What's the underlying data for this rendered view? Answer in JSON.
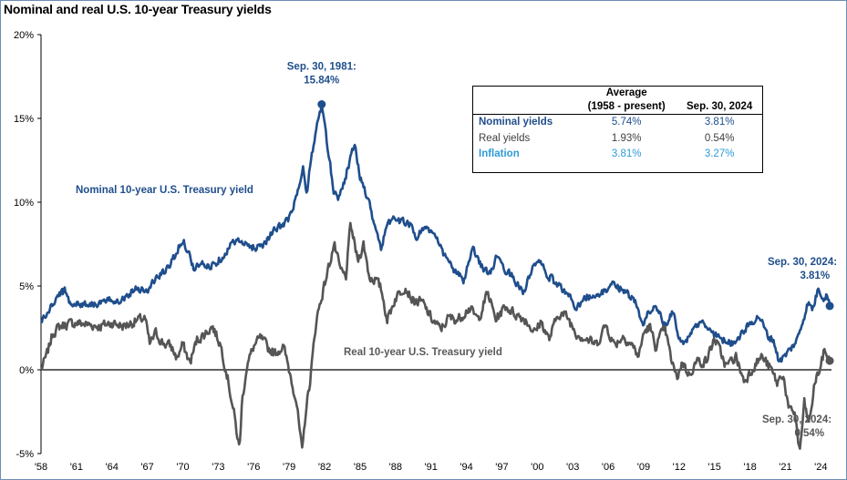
{
  "title": "Nominal and real U.S. 10-year Treasury yields",
  "colors": {
    "nominal": "#1f4e8c",
    "real": "#555555",
    "inflation": "#2e9bd6"
  },
  "chart_data": {
    "type": "line",
    "ylim": [
      -5,
      20
    ],
    "xlim": [
      1958.0,
      2024.9
    ],
    "y_ticks": [
      "20%",
      "15%",
      "10%",
      "5%",
      "0%",
      "-5%"
    ],
    "y_tick_values": [
      20,
      15,
      10,
      5,
      0,
      -5
    ],
    "x_ticks": [
      "'58",
      "'61",
      "'64",
      "'67",
      "'70",
      "'73",
      "'76",
      "'79",
      "'82",
      "'85",
      "'88",
      "'91",
      "'94",
      "'97",
      "'00",
      "'03",
      "'06",
      "'09",
      "'12",
      "'15",
      "'18",
      "'21",
      "'24"
    ],
    "x_tick_values": [
      1958,
      1961,
      1964,
      1967,
      1970,
      1973,
      1976,
      1979,
      1982,
      1985,
      1988,
      1991,
      1994,
      1997,
      2000,
      2003,
      2006,
      2009,
      2012,
      2015,
      2018,
      2021,
      2024
    ],
    "series": [
      {
        "name": "Nominal 10-year U.S. Treasury yield",
        "x": [
          1958.0,
          1958.5,
          1959.0,
          1959.5,
          1960.0,
          1960.5,
          1961.0,
          1962.0,
          1963.0,
          1964.0,
          1965.0,
          1966.0,
          1966.7,
          1967.0,
          1967.5,
          1968.0,
          1968.7,
          1969.3,
          1970.0,
          1970.6,
          1971.0,
          1971.5,
          1972.0,
          1972.8,
          1973.5,
          1974.5,
          1975.0,
          1976.0,
          1976.8,
          1977.5,
          1978.3,
          1979.0,
          1979.7,
          1980.2,
          1980.5,
          1980.9,
          1981.2,
          1981.75,
          1982.2,
          1982.8,
          1983.2,
          1983.8,
          1984.5,
          1985.0,
          1985.6,
          1986.3,
          1986.8,
          1987.3,
          1987.8,
          1988.3,
          1989.0,
          1989.8,
          1990.5,
          1991.3,
          1992.0,
          1993.0,
          1993.8,
          1994.5,
          1995.3,
          1996.0,
          1996.5,
          1997.3,
          1998.0,
          1998.8,
          1999.5,
          2000.0,
          2000.8,
          2001.5,
          2002.5,
          2003.3,
          2004.0,
          2005.0,
          2006.0,
          2006.5,
          2007.5,
          2008.3,
          2008.9,
          2009.4,
          2010.0,
          2010.8,
          2011.5,
          2012.0,
          2012.6,
          2013.5,
          2014.0,
          2015.0,
          2016.0,
          2016.5,
          2017.5,
          2018.2,
          2018.8,
          2019.5,
          2020.0,
          2020.4,
          2020.8,
          2021.5,
          2022.0,
          2022.5,
          2022.9,
          2023.3,
          2023.8,
          2024.2,
          2024.5,
          2024.75
        ],
        "values": [
          2.9,
          3.3,
          3.9,
          4.5,
          4.7,
          4.0,
          3.9,
          3.95,
          3.95,
          4.15,
          4.25,
          4.9,
          4.8,
          4.6,
          5.3,
          5.6,
          6.0,
          6.8,
          7.8,
          6.8,
          5.9,
          6.4,
          6.1,
          6.4,
          6.9,
          7.8,
          7.5,
          7.3,
          7.5,
          8.1,
          8.6,
          9.0,
          10.5,
          12.0,
          10.5,
          12.8,
          14.0,
          15.84,
          13.5,
          10.6,
          10.3,
          11.6,
          13.5,
          11.5,
          10.4,
          8.5,
          7.3,
          8.5,
          9.2,
          8.8,
          8.9,
          7.9,
          8.6,
          8.0,
          7.0,
          5.9,
          5.3,
          7.2,
          6.2,
          5.7,
          6.6,
          6.0,
          5.5,
          4.6,
          5.8,
          6.6,
          5.7,
          5.2,
          4.6,
          3.7,
          4.4,
          4.3,
          4.9,
          5.1,
          4.7,
          4.0,
          2.6,
          3.5,
          3.8,
          2.6,
          3.4,
          1.9,
          1.6,
          2.7,
          2.8,
          2.1,
          1.7,
          1.6,
          2.3,
          2.9,
          3.2,
          2.0,
          1.8,
          0.6,
          0.7,
          1.3,
          1.8,
          3.0,
          4.0,
          3.6,
          4.9,
          4.3,
          4.5,
          3.81
        ]
      },
      {
        "name": "Real 10-year U.S. Treasury yield",
        "x": [
          1958.0,
          1958.5,
          1959.0,
          1959.6,
          1960.0,
          1961.0,
          1962.0,
          1963.0,
          1964.0,
          1965.0,
          1966.0,
          1966.8,
          1967.2,
          1967.7,
          1968.3,
          1969.0,
          1969.5,
          1970.0,
          1970.6,
          1971.2,
          1971.8,
          1972.5,
          1973.2,
          1973.8,
          1974.3,
          1974.8,
          1975.0,
          1975.4,
          1976.0,
          1976.6,
          1977.2,
          1977.8,
          1978.5,
          1979.0,
          1979.6,
          1980.1,
          1980.4,
          1980.8,
          1981.3,
          1981.8,
          1982.3,
          1982.8,
          1983.3,
          1983.8,
          1984.2,
          1984.8,
          1985.3,
          1985.8,
          1986.3,
          1986.8,
          1987.3,
          1988.0,
          1988.8,
          1989.5,
          1990.3,
          1991.0,
          1991.8,
          1992.5,
          1993.3,
          1994.2,
          1995.0,
          1995.8,
          1996.5,
          1997.3,
          1998.0,
          1999.0,
          1999.8,
          2000.3,
          2001.0,
          2001.8,
          2002.5,
          2003.3,
          2004.0,
          2005.0,
          2005.8,
          2006.5,
          2007.3,
          2008.0,
          2008.6,
          2009.0,
          2009.5,
          2010.0,
          2010.8,
          2011.3,
          2011.8,
          2012.3,
          2012.8,
          2013.5,
          2014.3,
          2015.0,
          2016.0,
          2016.8,
          2017.5,
          2018.3,
          2019.0,
          2019.8,
          2020.3,
          2020.8,
          2021.3,
          2021.8,
          2022.2,
          2022.6,
          2023.0,
          2023.5,
          2024.0,
          2024.3,
          2024.75
        ],
        "values": [
          0.0,
          0.9,
          2.2,
          2.6,
          2.7,
          2.8,
          2.7,
          2.6,
          2.8,
          2.6,
          2.9,
          3.1,
          1.5,
          2.2,
          1.6,
          1.4,
          0.7,
          1.5,
          0.4,
          1.8,
          2.1,
          2.6,
          1.5,
          -0.5,
          -2.5,
          -4.8,
          -2.0,
          0.2,
          1.4,
          1.9,
          1.3,
          1.0,
          1.4,
          0.0,
          -1.8,
          -5.0,
          -2.5,
          -0.5,
          3.0,
          4.5,
          6.0,
          7.5,
          6.0,
          5.5,
          8.7,
          6.5,
          7.5,
          5.5,
          5.4,
          4.8,
          3.0,
          4.3,
          5.0,
          4.1,
          4.0,
          3.1,
          2.4,
          3.1,
          3.0,
          3.7,
          3.0,
          4.6,
          3.0,
          3.8,
          3.4,
          3.0,
          2.2,
          2.9,
          1.8,
          3.4,
          3.2,
          2.2,
          1.9,
          1.5,
          2.7,
          1.5,
          2.0,
          1.5,
          0.8,
          2.2,
          2.6,
          1.4,
          2.5,
          0.7,
          -0.5,
          0.5,
          -0.3,
          0.5,
          0.5,
          1.9,
          0.2,
          0.8,
          -0.7,
          0.2,
          0.8,
          0.0,
          -0.8,
          -0.2,
          -2.5,
          -2.5,
          -5.0,
          -2.0,
          -3.3,
          -0.7,
          0.2,
          1.2,
          0.54
        ]
      }
    ],
    "annotations": [
      {
        "lines": [
          "Sep. 30, 1981:",
          "15.84%"
        ],
        "x": 1981.75,
        "y": 15.84,
        "series": "nominal"
      },
      {
        "lines": [
          "Sep. 30, 2024:",
          "3.81%"
        ],
        "x": 2024.75,
        "y": 3.81,
        "series": "nominal"
      },
      {
        "lines": [
          "Sep. 30, 2024:",
          "0.54%"
        ],
        "x": 2024.75,
        "y": 0.54,
        "series": "real"
      }
    ],
    "series_labels": {
      "nominal": "Nominal  10-year U.S.  Treasury yield",
      "real": "Real 10-year U.S.  Treasury yield"
    }
  },
  "stats_table": {
    "header": {
      "avg_line1": "Average",
      "avg_line2": "(1958 - present)",
      "current": "Sep. 30, 2024"
    },
    "rows": [
      {
        "label": "Nominal yields",
        "average": "5.74%",
        "current": "3.81%"
      },
      {
        "label": "Real yields",
        "average": "1.93%",
        "current": "0.54%"
      },
      {
        "label": "Inflation",
        "average": "3.81%",
        "current": "3.27%"
      }
    ]
  }
}
